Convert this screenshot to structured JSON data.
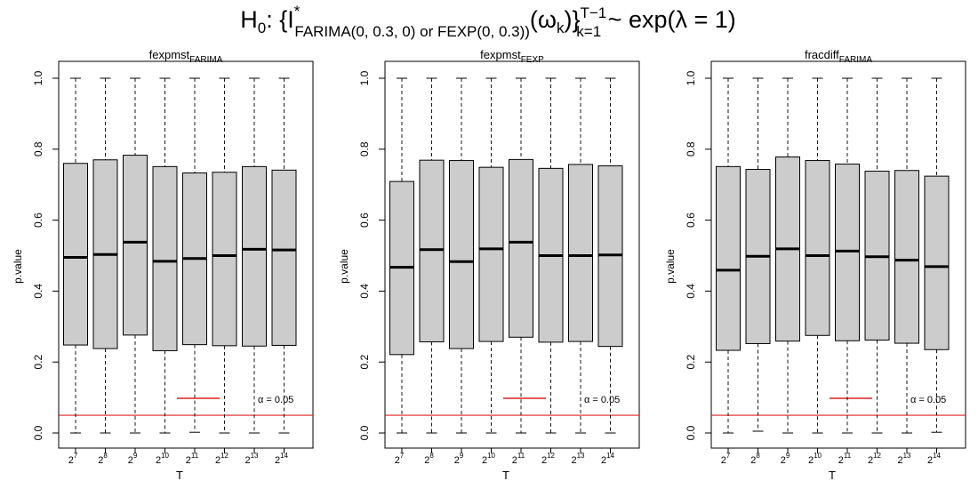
{
  "figure": {
    "title": {
      "prefix": "H",
      "prefix_sub": "0",
      "colon_brace": ":  {I",
      "star": "*",
      "model_sub": "FARIMA(0, 0.3, 0)  or  FEXP(0, 0.3))",
      "omega": "(ω",
      "omega_sub": "k",
      "close": ")}",
      "upper": "T−1",
      "lower": "k=1",
      "tail": " ~ exp(λ = 1)"
    }
  },
  "chart_data": [
    {
      "type": "boxplot",
      "title_main": "fexpmst",
      "title_sub": "FARIMA",
      "xlabel": "T",
      "ylabel": "p.value",
      "ylim": [
        0,
        1
      ],
      "yticks": [
        "0.0",
        "0.2",
        "0.4",
        "0.6",
        "0.8",
        "1.0"
      ],
      "categories": [
        "2^7",
        "2^8",
        "2^9",
        "2^10",
        "2^11",
        "2^12",
        "2^13",
        "2^14"
      ],
      "category_base": "2",
      "category_exponents": [
        "7",
        "8",
        "9",
        "10",
        "11",
        "12",
        "13",
        "14"
      ],
      "boxes": [
        {
          "min": 0.0,
          "q1": 0.248,
          "median": 0.495,
          "q3": 0.76,
          "max": 1.0
        },
        {
          "min": 0.0,
          "q1": 0.238,
          "median": 0.503,
          "q3": 0.77,
          "max": 1.0
        },
        {
          "min": 0.0,
          "q1": 0.276,
          "median": 0.538,
          "q3": 0.783,
          "max": 1.0
        },
        {
          "min": 0.0,
          "q1": 0.232,
          "median": 0.484,
          "q3": 0.751,
          "max": 1.0
        },
        {
          "min": 0.002,
          "q1": 0.249,
          "median": 0.492,
          "q3": 0.733,
          "max": 1.0
        },
        {
          "min": 0.0,
          "q1": 0.246,
          "median": 0.5,
          "q3": 0.735,
          "max": 1.0
        },
        {
          "min": 0.0,
          "q1": 0.245,
          "median": 0.518,
          "q3": 0.751,
          "max": 1.0
        },
        {
          "min": 0.0,
          "q1": 0.247,
          "median": 0.516,
          "q3": 0.741,
          "max": 1.0
        }
      ],
      "reference_line": {
        "y": 0.05,
        "color": "#dd2222"
      },
      "legend": {
        "label": "α = 0.05",
        "position": "bottom-right"
      }
    },
    {
      "type": "boxplot",
      "title_main": "fexpmst",
      "title_sub": "FEXP",
      "xlabel": "T",
      "ylabel": "p.value",
      "ylim": [
        0,
        1
      ],
      "yticks": [
        "0.0",
        "0.2",
        "0.4",
        "0.6",
        "0.8",
        "1.0"
      ],
      "categories": [
        "2^7",
        "2^8",
        "2^9",
        "2^10",
        "2^11",
        "2^12",
        "2^13",
        "2^14"
      ],
      "category_base": "2",
      "category_exponents": [
        "7",
        "8",
        "9",
        "10",
        "11",
        "12",
        "13",
        "14"
      ],
      "boxes": [
        {
          "min": 0.0,
          "q1": 0.221,
          "median": 0.467,
          "q3": 0.709,
          "max": 1.0
        },
        {
          "min": 0.0,
          "q1": 0.257,
          "median": 0.517,
          "q3": 0.769,
          "max": 1.0
        },
        {
          "min": 0.0,
          "q1": 0.238,
          "median": 0.483,
          "q3": 0.768,
          "max": 1.0
        },
        {
          "min": 0.0,
          "q1": 0.258,
          "median": 0.519,
          "q3": 0.749,
          "max": 1.0
        },
        {
          "min": 0.0,
          "q1": 0.27,
          "median": 0.538,
          "q3": 0.771,
          "max": 1.0
        },
        {
          "min": 0.0,
          "q1": 0.256,
          "median": 0.5,
          "q3": 0.746,
          "max": 1.0
        },
        {
          "min": 0.0,
          "q1": 0.258,
          "median": 0.5,
          "q3": 0.757,
          "max": 1.0
        },
        {
          "min": 0.0,
          "q1": 0.244,
          "median": 0.502,
          "q3": 0.753,
          "max": 1.0
        }
      ],
      "reference_line": {
        "y": 0.05,
        "color": "#dd2222"
      },
      "legend": {
        "label": "α = 0.05",
        "position": "bottom-right"
      }
    },
    {
      "type": "boxplot",
      "title_main": "fracdiff",
      "title_sub": "FARIMA",
      "xlabel": "T",
      "ylabel": "p.value",
      "ylim": [
        0,
        1
      ],
      "yticks": [
        "0.0",
        "0.2",
        "0.4",
        "0.6",
        "0.8",
        "1.0"
      ],
      "categories": [
        "2^7",
        "2^8",
        "2^9",
        "2^10",
        "2^11",
        "2^12",
        "2^13",
        "2^14"
      ],
      "category_base": "2",
      "category_exponents": [
        "7",
        "8",
        "9",
        "10",
        "11",
        "12",
        "13",
        "14"
      ],
      "boxes": [
        {
          "min": 0.0,
          "q1": 0.233,
          "median": 0.459,
          "q3": 0.751,
          "max": 1.0
        },
        {
          "min": 0.005,
          "q1": 0.252,
          "median": 0.498,
          "q3": 0.743,
          "max": 1.0
        },
        {
          "min": 0.0,
          "q1": 0.259,
          "median": 0.519,
          "q3": 0.778,
          "max": 1.0
        },
        {
          "min": 0.0,
          "q1": 0.275,
          "median": 0.5,
          "q3": 0.768,
          "max": 1.0
        },
        {
          "min": 0.0,
          "q1": 0.26,
          "median": 0.513,
          "q3": 0.758,
          "max": 1.0
        },
        {
          "min": 0.0,
          "q1": 0.262,
          "median": 0.497,
          "q3": 0.738,
          "max": 1.0
        },
        {
          "min": 0.0,
          "q1": 0.253,
          "median": 0.487,
          "q3": 0.74,
          "max": 1.0
        },
        {
          "min": 0.002,
          "q1": 0.235,
          "median": 0.469,
          "q3": 0.724,
          "max": 1.0
        }
      ],
      "reference_line": {
        "y": 0.05,
        "color": "#dd2222"
      },
      "legend": {
        "label": "α = 0.05",
        "position": "bottom-right"
      }
    }
  ]
}
